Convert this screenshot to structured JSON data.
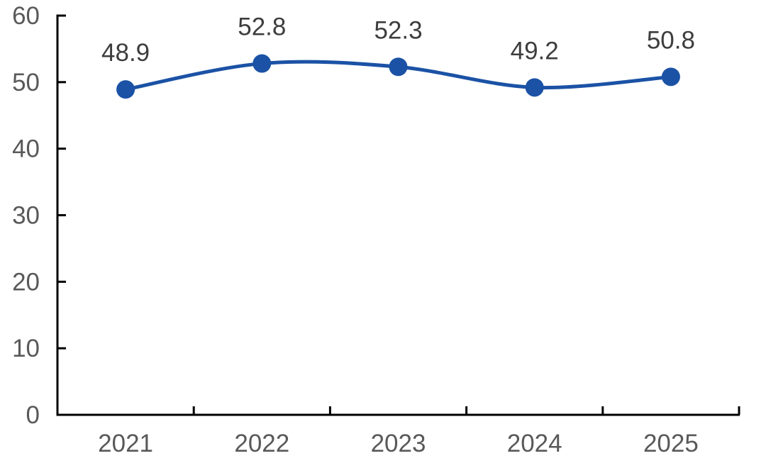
{
  "chart_data": {
    "type": "line",
    "title": "",
    "xlabel": "",
    "ylabel": "",
    "categories": [
      "2021",
      "2022",
      "2023",
      "2024",
      "2025"
    ],
    "series": [
      {
        "name": "series-1",
        "values": [
          48.9,
          52.8,
          52.3,
          49.2,
          50.8
        ]
      }
    ],
    "data_labels": [
      "48.9",
      "52.8",
      "52.3",
      "49.2",
      "50.8"
    ],
    "y_ticks": [
      0,
      10,
      20,
      30,
      40,
      50,
      60
    ],
    "y_tick_labels": [
      "0",
      "10",
      "20",
      "30",
      "40",
      "50",
      "60"
    ],
    "ylim": [
      0,
      60
    ],
    "grid": false,
    "legend": "none",
    "smooth_line": true,
    "marker": "circle",
    "colors": {
      "line": "#1B52A5",
      "marker": "#1B52A5",
      "axis": "#000000",
      "axis_labels": "#595959",
      "data_labels": "#3D3D3D",
      "background": "#FFFFFF"
    }
  }
}
